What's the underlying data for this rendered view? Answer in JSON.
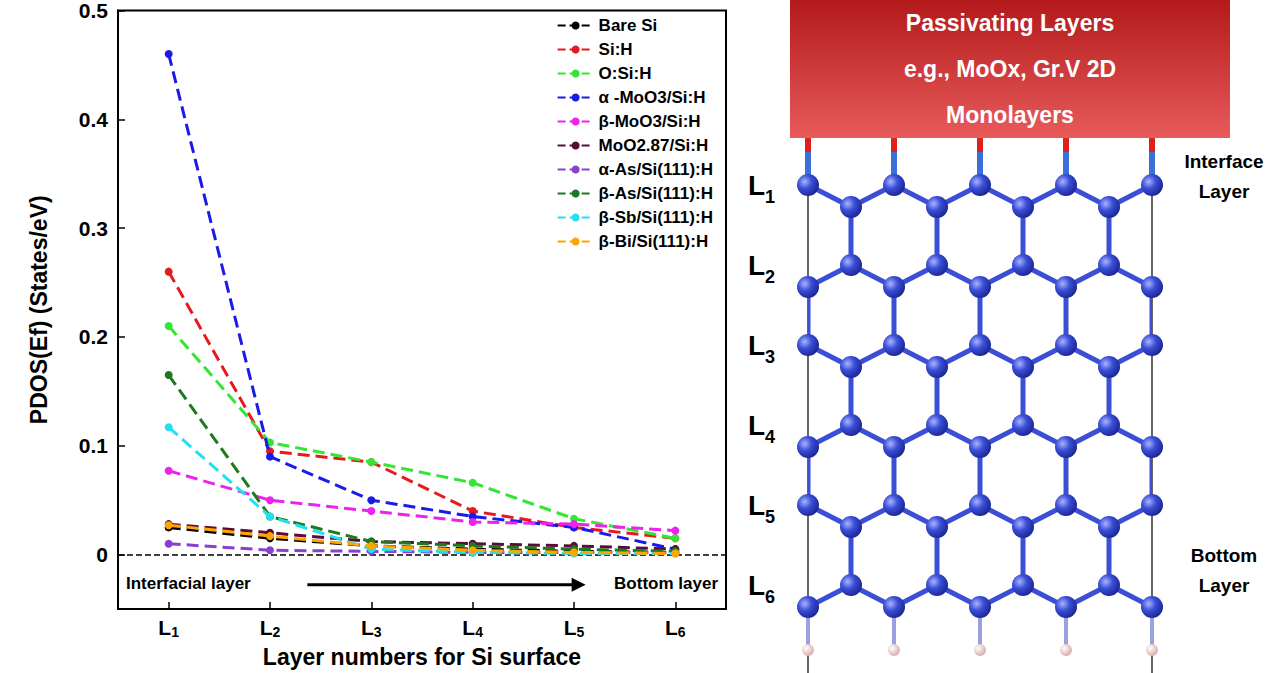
{
  "chart_data": {
    "type": "line",
    "x_label": "Layer numbers for Si surface",
    "y_label": "PDOS(Ef) (States/eV)",
    "categories": [
      "L1",
      "L2",
      "L3",
      "L4",
      "L5",
      "L6"
    ],
    "ylim": [
      -0.05,
      0.5
    ],
    "yticks": [
      0,
      0.1,
      0.2,
      0.3,
      0.4,
      0.5
    ],
    "grid": false,
    "legend": "top-right",
    "marker": "circle",
    "line_style": "dashed",
    "annotations": [
      "Interfacial layer",
      "Bottom layer"
    ],
    "series": [
      {
        "name": "Bare Si",
        "color": "#000000",
        "values": [
          0.025,
          0.015,
          0.008,
          0.005,
          0.003,
          0.002
        ]
      },
      {
        "name": "Si:H",
        "color": "#e8191c",
        "values": [
          0.26,
          0.095,
          0.085,
          0.04,
          0.025,
          0.015
        ]
      },
      {
        "name": "O:Si:H",
        "color": "#33e633",
        "values": [
          0.21,
          0.103,
          0.085,
          0.066,
          0.033,
          0.015
        ]
      },
      {
        "name": "α -MoO3/Si:H",
        "color": "#1a1aeb",
        "values": [
          0.46,
          0.09,
          0.05,
          0.035,
          0.025,
          0.005
        ]
      },
      {
        "name": "β-MoO3/Si:H",
        "color": "#ee22ee",
        "values": [
          0.077,
          0.05,
          0.04,
          0.03,
          0.028,
          0.022
        ]
      },
      {
        "name": "MoO2.87/Si:H",
        "color": "#5c0a3c",
        "values": [
          0.028,
          0.02,
          0.012,
          0.01,
          0.008,
          0.005
        ]
      },
      {
        "name": "α-As/Si(111):H",
        "color": "#8a3fd1",
        "values": [
          0.01,
          0.004,
          0.003,
          0.002,
          0.002,
          0.002
        ]
      },
      {
        "name": "β-As/Si(111):H",
        "color": "#1e7a1e",
        "values": [
          0.165,
          0.035,
          0.012,
          0.008,
          0.005,
          0.003
        ]
      },
      {
        "name": "β-Sb/Si(111):H",
        "color": "#22e0f0",
        "values": [
          0.117,
          0.035,
          0.005,
          0.002,
          0.001,
          0.001
        ]
      },
      {
        "name": "β-Bi/Si(111):H",
        "color": "#ffa500",
        "values": [
          0.027,
          0.017,
          0.008,
          0.004,
          0.002,
          0.001
        ]
      }
    ]
  },
  "diagram": {
    "passivating_box": [
      "Passivating Layers",
      "e.g., MoOx,  Gr.V 2D",
      "Monolayers"
    ],
    "layer_labels": [
      "L1",
      "L2",
      "L3",
      "L4",
      "L5",
      "L6"
    ],
    "interface_label": "Interface Layer",
    "bottom_label": "Bottom Layer"
  }
}
